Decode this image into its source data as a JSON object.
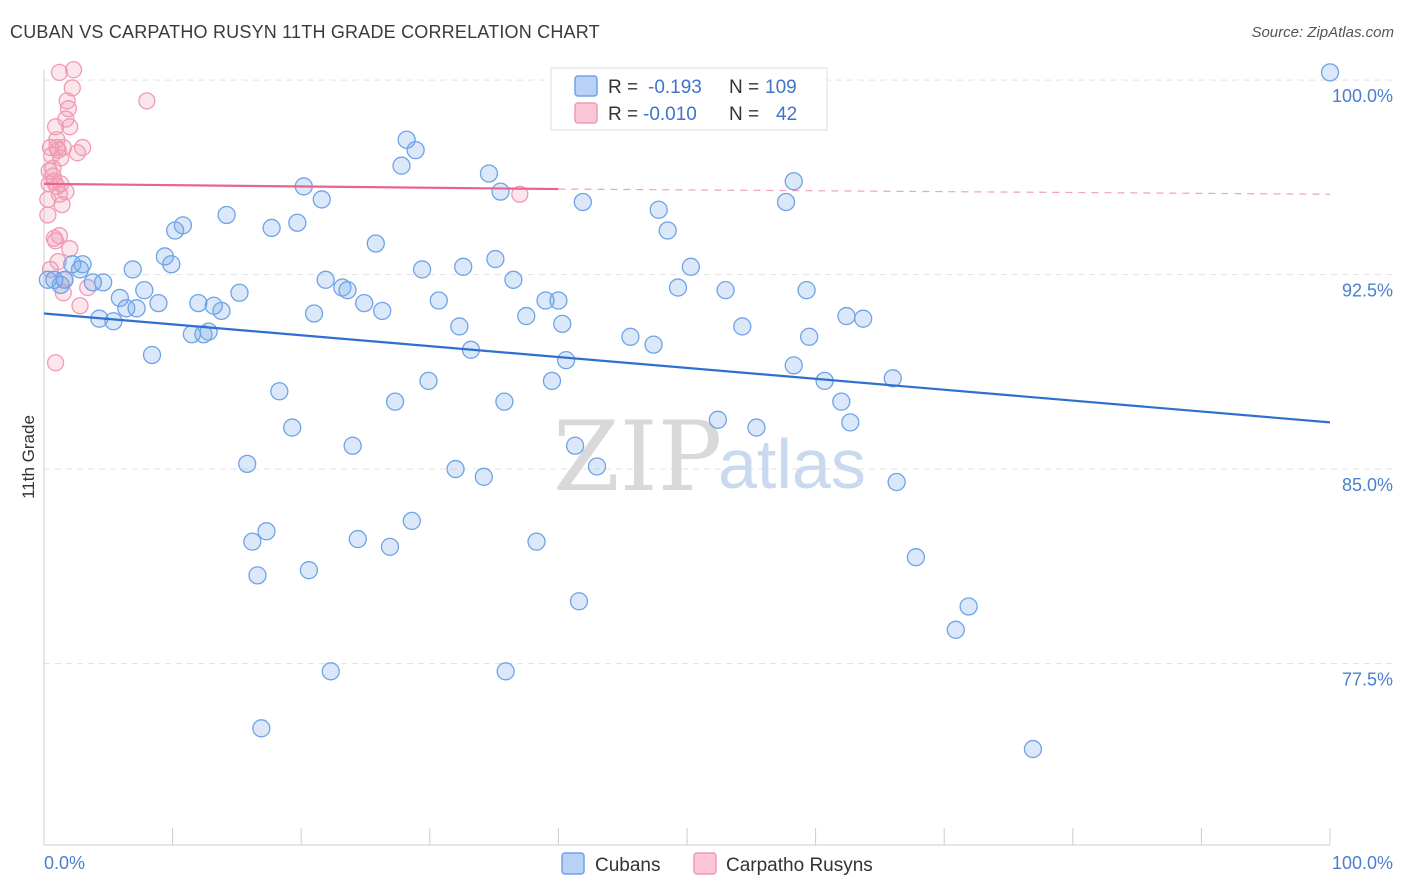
{
  "header": {
    "title": "CUBAN VS CARPATHO RUSYN 11TH GRADE CORRELATION CHART",
    "source": "Source: ZipAtlas.com"
  },
  "colors": {
    "blue": "#6fa3e8",
    "blue_line": "#2f6fcf",
    "pink": "#f19ab5",
    "pink_line": "#e8638f",
    "axis_text": "#4a7fd0"
  },
  "legend": {
    "r_label": "R =",
    "n_label": "N =",
    "blue": {
      "r": "-0.193",
      "n": "109"
    },
    "pink": {
      "r": "-0.010",
      "n": "42"
    }
  },
  "bottom_legend": {
    "blue": "Cubans",
    "pink": "Carpatho Rusyns"
  },
  "watermark": {
    "part1": "ZIP",
    "part2": "atlas"
  },
  "chart_data": {
    "type": "scatter",
    "title": "CUBAN VS CARPATHO RUSYN 11TH GRADE CORRELATION CHART",
    "xlabel": "",
    "ylabel": "11th Grade",
    "xlim": [
      0,
      100
    ],
    "ylim": [
      70.5,
      100.7
    ],
    "x_tick_labels": [
      "0.0%",
      "100.0%"
    ],
    "y_ticks": [
      100.0,
      92.5,
      85.0,
      77.5
    ],
    "y_tick_labels": [
      "100.0%",
      "92.5%",
      "85.0%",
      "77.5%"
    ],
    "series": [
      {
        "name": "Cubans",
        "trend": {
          "x": [
            0,
            100
          ],
          "y": [
            91.0,
            86.8
          ]
        },
        "points": [
          [
            0.3,
            92.3
          ],
          [
            0.8,
            92.3
          ],
          [
            1.3,
            92.1
          ],
          [
            1.6,
            92.3
          ],
          [
            2.2,
            92.9
          ],
          [
            3.0,
            92.9
          ],
          [
            2.8,
            92.7
          ],
          [
            3.8,
            92.2
          ],
          [
            4.6,
            92.2
          ],
          [
            5.9,
            91.6
          ],
          [
            6.4,
            91.2
          ],
          [
            7.2,
            91.2
          ],
          [
            6.9,
            92.7
          ],
          [
            7.8,
            91.9
          ],
          [
            8.4,
            89.4
          ],
          [
            8.9,
            91.4
          ],
          [
            4.3,
            90.8
          ],
          [
            5.4,
            90.7
          ],
          [
            9.4,
            93.2
          ],
          [
            9.9,
            92.9
          ],
          [
            10.2,
            94.2
          ],
          [
            10.8,
            94.4
          ],
          [
            11.5,
            90.2
          ],
          [
            12.0,
            91.4
          ],
          [
            12.4,
            90.2
          ],
          [
            12.8,
            90.3
          ],
          [
            13.2,
            91.3
          ],
          [
            13.8,
            91.1
          ],
          [
            14.2,
            94.8
          ],
          [
            15.2,
            91.8
          ],
          [
            15.8,
            85.2
          ],
          [
            16.2,
            82.2
          ],
          [
            16.6,
            80.9
          ],
          [
            16.9,
            75.0
          ],
          [
            17.3,
            82.6
          ],
          [
            17.7,
            94.3
          ],
          [
            18.3,
            88.0
          ],
          [
            19.3,
            86.6
          ],
          [
            19.7,
            94.5
          ],
          [
            20.2,
            95.9
          ],
          [
            20.6,
            81.1
          ],
          [
            21.0,
            91.0
          ],
          [
            21.6,
            95.4
          ],
          [
            21.9,
            92.3
          ],
          [
            22.3,
            77.2
          ],
          [
            23.2,
            92.0
          ],
          [
            23.6,
            91.9
          ],
          [
            24.0,
            85.9
          ],
          [
            24.4,
            82.3
          ],
          [
            24.9,
            91.4
          ],
          [
            25.8,
            93.7
          ],
          [
            26.3,
            91.1
          ],
          [
            26.9,
            82.0
          ],
          [
            27.3,
            87.6
          ],
          [
            27.8,
            96.7
          ],
          [
            28.2,
            97.7
          ],
          [
            28.6,
            83.0
          ],
          [
            28.9,
            97.3
          ],
          [
            29.4,
            92.7
          ],
          [
            29.9,
            88.4
          ],
          [
            30.7,
            91.5
          ],
          [
            32.0,
            85.0
          ],
          [
            32.3,
            90.5
          ],
          [
            32.6,
            92.8
          ],
          [
            33.2,
            89.6
          ],
          [
            34.2,
            84.7
          ],
          [
            34.6,
            96.4
          ],
          [
            35.1,
            93.1
          ],
          [
            35.5,
            95.7
          ],
          [
            35.8,
            87.6
          ],
          [
            35.9,
            77.2
          ],
          [
            36.5,
            92.3
          ],
          [
            37.5,
            90.9
          ],
          [
            38.3,
            82.2
          ],
          [
            39.0,
            91.5
          ],
          [
            39.5,
            88.4
          ],
          [
            40.0,
            91.5
          ],
          [
            40.3,
            90.6
          ],
          [
            40.6,
            89.2
          ],
          [
            41.3,
            85.9
          ],
          [
            41.6,
            79.9
          ],
          [
            41.9,
            95.3
          ],
          [
            43.0,
            85.1
          ],
          [
            45.6,
            90.1
          ],
          [
            47.4,
            89.8
          ],
          [
            47.8,
            95.0
          ],
          [
            48.5,
            94.2
          ],
          [
            49.3,
            92.0
          ],
          [
            50.3,
            92.8
          ],
          [
            52.4,
            86.9
          ],
          [
            53.0,
            91.9
          ],
          [
            54.3,
            90.5
          ],
          [
            55.4,
            86.6
          ],
          [
            57.7,
            95.3
          ],
          [
            58.3,
            89.0
          ],
          [
            58.3,
            96.1
          ],
          [
            59.3,
            91.9
          ],
          [
            59.5,
            90.1
          ],
          [
            60.7,
            88.4
          ],
          [
            62.0,
            87.6
          ],
          [
            62.4,
            90.9
          ],
          [
            62.7,
            86.8
          ],
          [
            63.7,
            90.8
          ],
          [
            66.0,
            88.5
          ],
          [
            66.3,
            84.5
          ],
          [
            67.8,
            81.6
          ],
          [
            70.9,
            78.8
          ],
          [
            71.9,
            79.7
          ],
          [
            76.9,
            74.2
          ],
          [
            100,
            100.3
          ]
        ]
      },
      {
        "name": "Carpatho Rusyns",
        "trend": {
          "x": [
            0,
            40
          ],
          "y": [
            96.0,
            95.8
          ]
        },
        "trend_extension": {
          "x": [
            40,
            100
          ],
          "y": [
            95.8,
            95.6
          ]
        },
        "points": [
          [
            0.3,
            95.4
          ],
          [
            0.3,
            94.8
          ],
          [
            0.4,
            96.0
          ],
          [
            0.5,
            97.4
          ],
          [
            0.7,
            96.3
          ],
          [
            0.6,
            97.1
          ],
          [
            0.7,
            96.6
          ],
          [
            0.8,
            93.9
          ],
          [
            0.8,
            96.1
          ],
          [
            0.9,
            98.2
          ],
          [
            0.9,
            93.8
          ],
          [
            1.0,
            97.4
          ],
          [
            1.0,
            95.9
          ],
          [
            1.1,
            97.3
          ],
          [
            1.2,
            95.6
          ],
          [
            1.2,
            94.0
          ],
          [
            1.3,
            97.0
          ],
          [
            1.3,
            96.0
          ],
          [
            1.4,
            95.2
          ],
          [
            1.5,
            97.4
          ],
          [
            1.5,
            91.8
          ],
          [
            1.6,
            92.3
          ],
          [
            1.7,
            98.5
          ],
          [
            1.8,
            99.2
          ],
          [
            1.7,
            95.7
          ],
          [
            1.9,
            98.9
          ],
          [
            2.0,
            98.2
          ],
          [
            2.2,
            99.7
          ],
          [
            2.3,
            100.4
          ],
          [
            2.6,
            97.2
          ],
          [
            2.8,
            91.3
          ],
          [
            3.0,
            97.4
          ],
          [
            1.0,
            97.7
          ],
          [
            1.2,
            100.3
          ],
          [
            0.9,
            89.1
          ],
          [
            0.5,
            92.7
          ],
          [
            1.1,
            93.0
          ],
          [
            2.0,
            93.5
          ],
          [
            0.4,
            96.5
          ],
          [
            3.4,
            92.0
          ],
          [
            8.0,
            99.2
          ],
          [
            37.0,
            95.6
          ]
        ]
      }
    ]
  }
}
